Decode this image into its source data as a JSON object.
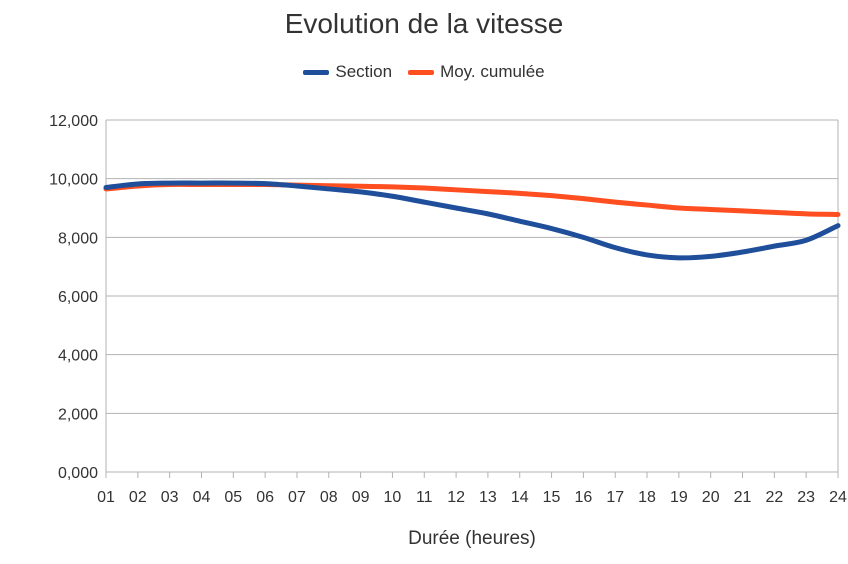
{
  "chart_data": {
    "type": "line",
    "title": "Evolution de la vitesse",
    "xlabel": "Durée (heures)",
    "ylabel": "",
    "categories": [
      "01",
      "02",
      "03",
      "04",
      "05",
      "06",
      "07",
      "08",
      "09",
      "10",
      "11",
      "12",
      "13",
      "14",
      "15",
      "16",
      "17",
      "18",
      "19",
      "20",
      "21",
      "22",
      "23",
      "24"
    ],
    "ylim": [
      0,
      12
    ],
    "yticks": [
      "0,000",
      "2,000",
      "4,000",
      "6,000",
      "8,000",
      "10,000",
      "12,000"
    ],
    "grid": true,
    "legend_position": "top-center",
    "series": [
      {
        "name": "Section",
        "color": "#1f4e9a",
        "values": [
          9.7,
          9.82,
          9.85,
          9.85,
          9.85,
          9.83,
          9.75,
          9.65,
          9.55,
          9.4,
          9.2,
          9.0,
          8.8,
          8.55,
          8.3,
          8.0,
          7.65,
          7.4,
          7.3,
          7.35,
          7.5,
          7.7,
          7.9,
          8.4
        ]
      },
      {
        "name": "Moy. cumulée",
        "color": "#ff4e20",
        "values": [
          9.65,
          9.75,
          9.8,
          9.8,
          9.8,
          9.8,
          9.78,
          9.76,
          9.74,
          9.72,
          9.68,
          9.62,
          9.56,
          9.5,
          9.42,
          9.32,
          9.2,
          9.1,
          9.0,
          8.95,
          8.9,
          8.85,
          8.8,
          8.78
        ]
      }
    ]
  }
}
